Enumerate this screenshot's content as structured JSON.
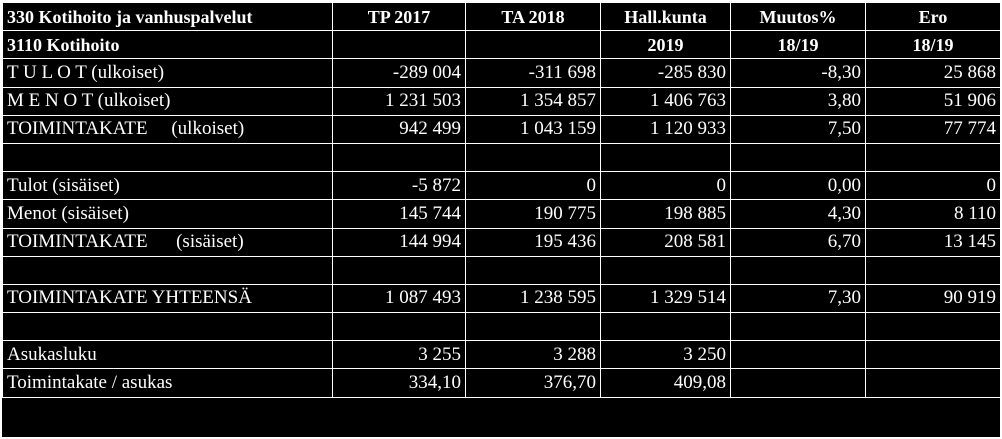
{
  "header": {
    "row1": [
      "330 Kotihoito ja vanhuspalvelut",
      "TP 2017",
      "TA 2018",
      "Hall.kunta",
      "Muutos%",
      "Ero"
    ],
    "row2": [
      "3110 Kotihoito",
      "",
      "",
      "2019",
      "18/19",
      "18/19"
    ]
  },
  "rows": [
    {
      "label": "T U L O T (ulkoiset)",
      "tp2017": "-289 004",
      "ta2018": "-311 698",
      "hallkunta2019": "-285 830",
      "muutos": "-8,30",
      "ero": "25 868"
    },
    {
      "label": "M E N O T (ulkoiset)",
      "tp2017": "1 231 503",
      "ta2018": "1 354 857",
      "hallkunta2019": "1 406 763",
      "muutos": "3,80",
      "ero": "51 906"
    },
    {
      "label": "TOIMINTAKATE     (ulkoiset)",
      "tp2017": "942 499",
      "ta2018": "1 043 159",
      "hallkunta2019": "1 120 933",
      "muutos": "7,50",
      "ero": "77 774"
    },
    {
      "label": "",
      "tp2017": "",
      "ta2018": "",
      "hallkunta2019": "",
      "muutos": "",
      "ero": ""
    },
    {
      "label": "Tulot (sisäiset)",
      "tp2017": "-5 872",
      "ta2018": "0",
      "hallkunta2019": "0",
      "muutos": "0,00",
      "ero": "0"
    },
    {
      "label": "Menot (sisäiset)",
      "tp2017": "145 744",
      "ta2018": "190 775",
      "hallkunta2019": "198 885",
      "muutos": "4,30",
      "ero": "8 110"
    },
    {
      "label": "TOIMINTAKATE      (sisäiset)",
      "tp2017": "144 994",
      "ta2018": "195 436",
      "hallkunta2019": "208 581",
      "muutos": "6,70",
      "ero": "13 145"
    },
    {
      "label": "",
      "tp2017": "",
      "ta2018": "",
      "hallkunta2019": "",
      "muutos": "",
      "ero": ""
    },
    {
      "label": "TOIMINTAKATE YHTEENSÄ",
      "tp2017": "1 087 493",
      "ta2018": "1 238 595",
      "hallkunta2019": "1 329 514",
      "muutos": "7,30",
      "ero": "90 919"
    },
    {
      "label": "",
      "tp2017": "",
      "ta2018": "",
      "hallkunta2019": "",
      "muutos": "",
      "ero": ""
    },
    {
      "label": "Asukasluku",
      "tp2017": "3 255",
      "ta2018": "3 288",
      "hallkunta2019": "3 250",
      "muutos": "",
      "ero": ""
    },
    {
      "label": "Toimintakate / asukas",
      "tp2017": "334,10",
      "ta2018": "376,70",
      "hallkunta2019": "409,08",
      "muutos": "",
      "ero": ""
    }
  ],
  "colors": {
    "background": "#000000",
    "text": "#ffffff",
    "gridline": "#ffffff"
  }
}
